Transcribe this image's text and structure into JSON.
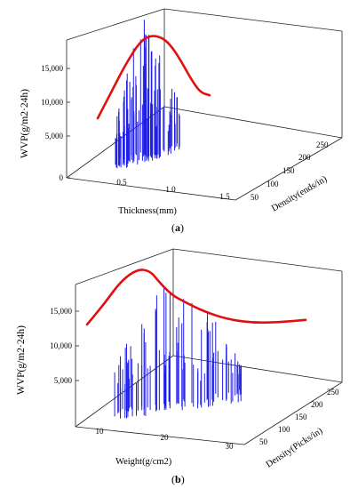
{
  "chart_data": [
    {
      "type": "3d-spike",
      "panel_label": "a",
      "ylabel": "WVP(g/m2·24h)",
      "xlabel": "Thickness(mm)",
      "zlabel": "Density(ends/in)",
      "y_ticks": [
        "0",
        "5,000",
        "10,000",
        "15,000"
      ],
      "x_ticks": [
        "0.5",
        "1.0",
        "1.5"
      ],
      "z_ticks": [
        "50",
        "100",
        "150",
        "200",
        "250"
      ],
      "ylim": [
        0,
        20000
      ],
      "xlim": [
        0.2,
        1.7
      ],
      "zlim": [
        40,
        260
      ],
      "curve": {
        "x": [
          0.25,
          0.4,
          0.55,
          0.7,
          0.82,
          0.95,
          1.05,
          1.15,
          1.25,
          1.35,
          1.45
        ],
        "y": [
          7500,
          11500,
          15500,
          18800,
          19800,
          19400,
          18000,
          15800,
          13300,
          11300,
          10900
        ]
      }
    },
    {
      "type": "3d-spike",
      "panel_label": "b",
      "ylabel": "WVP(g/m2·24h)",
      "xlabel": "Weight(g/cm2)",
      "zlabel": "Density(Picks/in)",
      "y_ticks": [
        "5,000",
        "10,000",
        "15,000"
      ],
      "x_ticks": [
        "10",
        "20",
        "30"
      ],
      "z_ticks": [
        "50",
        "100",
        "150",
        "200",
        "250"
      ],
      "ylim": [
        0,
        20000
      ],
      "xlim": [
        6,
        33
      ],
      "zlim": [
        40,
        260
      ],
      "curve": {
        "x": [
          7,
          9,
          11,
          13,
          14.5,
          15.5,
          17,
          18.5,
          21,
          24,
          27,
          30,
          33
        ],
        "y": [
          10000,
          13500,
          17500,
          19600,
          19300,
          17500,
          15200,
          14000,
          12200,
          10800,
          10300,
          10400,
          10800
        ]
      }
    }
  ],
  "captions": {
    "a": "(a)",
    "b": "(b)"
  }
}
